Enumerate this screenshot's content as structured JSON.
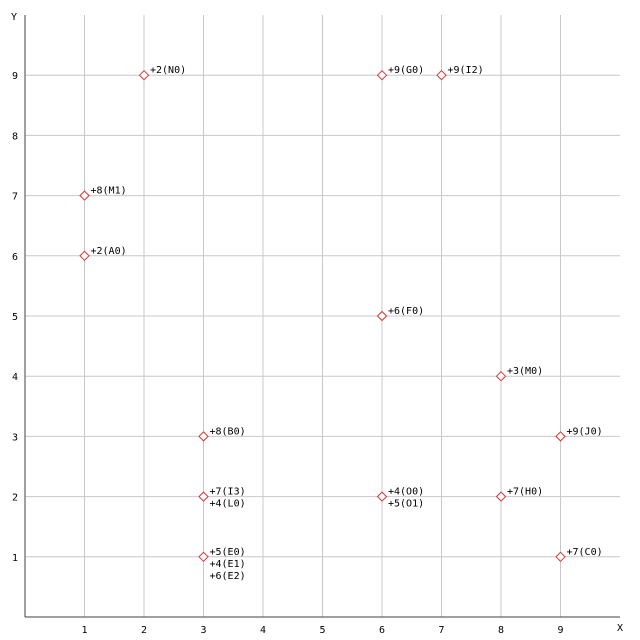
{
  "chart_data": {
    "type": "scatter",
    "x_label": "X",
    "y_label": "Y",
    "x": [
      2,
      6,
      7,
      1,
      1,
      6,
      8,
      3,
      9,
      3,
      6,
      8,
      3,
      9
    ],
    "y": [
      9,
      9,
      9,
      7,
      6,
      5,
      4,
      3,
      3,
      2,
      2,
      2,
      1,
      1
    ],
    "labels": [
      [
        "+2(N0)"
      ],
      [
        "+9(G0)"
      ],
      [
        "+9(I2)"
      ],
      [
        "+8(M1)"
      ],
      [
        "+2(A0)"
      ],
      [
        "+6(F0)"
      ],
      [
        "+3(M0)"
      ],
      [
        "+8(B0)"
      ],
      [
        "+9(J0)"
      ],
      [
        "+7(I3)",
        "+4(L0)"
      ],
      [
        "+4(O0)",
        "+5(O1)"
      ],
      [
        "+7(H0)"
      ],
      [
        "+5(E0)",
        "+4(E1)",
        "+6(E2)"
      ],
      [
        "+7(C0)"
      ]
    ],
    "color": "#e03030",
    "xlim": [
      0,
      10
    ],
    "ylim": [
      0,
      10
    ],
    "xticks": [
      1,
      2,
      3,
      4,
      5,
      6,
      7,
      8,
      9
    ],
    "yticks": [
      1,
      2,
      3,
      4,
      5,
      6,
      7,
      8,
      9
    ],
    "grid": true
  }
}
